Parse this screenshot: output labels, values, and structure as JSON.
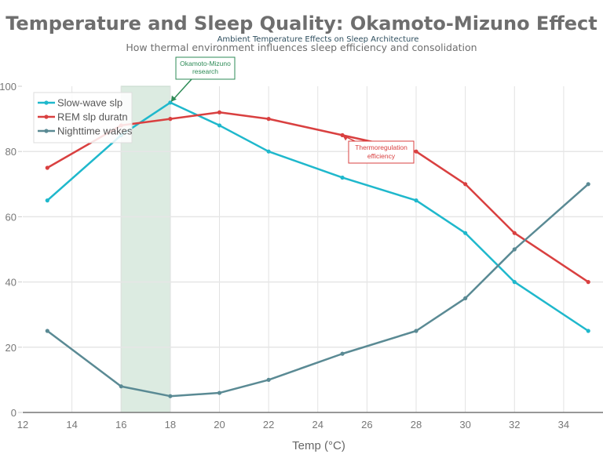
{
  "chart_data": {
    "type": "line",
    "title": "Temperature and Sleep Quality: Okamoto-Mizuno Effect",
    "subtitle": "Ambient Temperature Effects on Sleep Architecture",
    "caption": "How thermal environment influences sleep efficiency and consolidation",
    "xlabel": "Temp (°C)",
    "ylabel": "",
    "xlim": [
      12,
      35.6
    ],
    "ylim": [
      0,
      100
    ],
    "xticks": [
      12,
      14,
      16,
      18,
      20,
      22,
      24,
      26,
      28,
      30,
      32,
      34
    ],
    "yticks": [
      0,
      20,
      40,
      60,
      80,
      100
    ],
    "grid": true,
    "legend_position": "top-left",
    "x": [
      13,
      16,
      18,
      20,
      22,
      25,
      28,
      30,
      32,
      35
    ],
    "series": [
      {
        "name": "Slow-wave slp",
        "color": "#1fb8cc",
        "values": [
          65,
          85,
          95,
          88,
          80,
          72,
          65,
          55,
          40,
          25
        ]
      },
      {
        "name": "REM slp duratn",
        "color": "#d94040",
        "values": [
          75,
          88,
          90,
          92,
          90,
          85,
          80,
          70,
          55,
          40
        ]
      },
      {
        "name": "Nighttime wakes",
        "color": "#5a8a94",
        "values": [
          25,
          8,
          5,
          6,
          10,
          18,
          25,
          35,
          50,
          70
        ]
      }
    ],
    "shaded_region": {
      "x_range": [
        16,
        18
      ],
      "color": "#dcebe1"
    },
    "annotations": [
      {
        "text_lines": [
          "Okamoto-Mizuno",
          "research"
        ],
        "x": 18,
        "y": 95,
        "color": "#2e8b57"
      },
      {
        "text_lines": [
          "Thermoregulation",
          "efficiency"
        ],
        "x": 25,
        "y": 85,
        "color": "#d94040"
      }
    ]
  }
}
